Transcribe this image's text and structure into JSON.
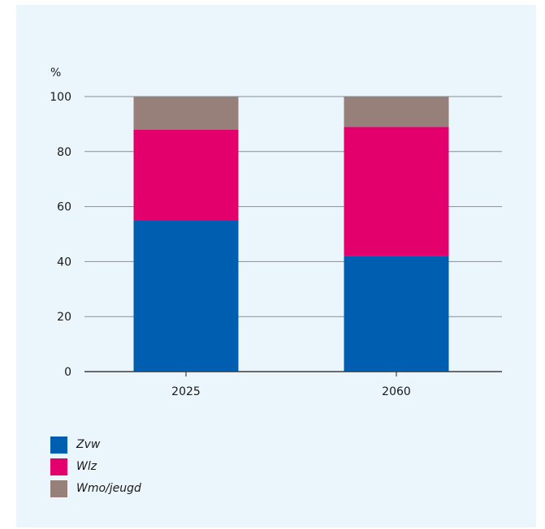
{
  "chart_data": {
    "type": "bar",
    "stacked": true,
    "title": "",
    "xlabel": "",
    "ylabel": "%",
    "ylim": [
      0,
      100
    ],
    "yticks": [
      0,
      20,
      40,
      60,
      80,
      100
    ],
    "categories": [
      "2025",
      "2060"
    ],
    "series": [
      {
        "name": "Zvw",
        "color": "#005eb0",
        "values": [
          55,
          42
        ]
      },
      {
        "name": "Wlz",
        "color": "#e3006c",
        "values": [
          33,
          47
        ]
      },
      {
        "name": "Wmo/jeugd",
        "color": "#978079",
        "values": [
          12,
          11
        ]
      }
    ],
    "grid": true,
    "legend_position": "bottom-left"
  }
}
